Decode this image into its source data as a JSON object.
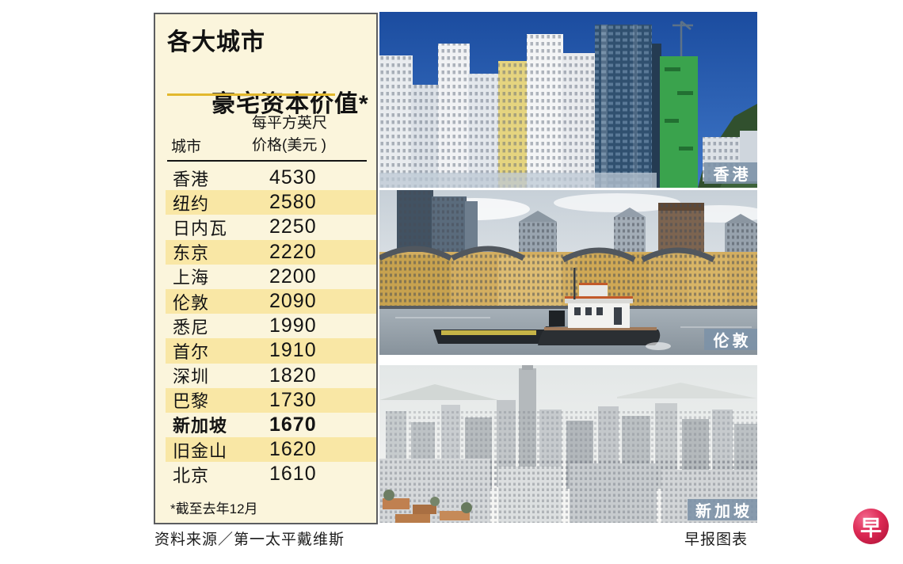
{
  "panel": {
    "title_line1": "各大城市",
    "title_line2": "豪宅资本价值*",
    "col_city": "城市",
    "col_price_line1": "每平方英尺",
    "col_price_line2": "价格(美元 )",
    "rows": [
      {
        "city": "香港",
        "price": "4530"
      },
      {
        "city": "纽约",
        "price": "2580"
      },
      {
        "city": "日内瓦",
        "price": "2250"
      },
      {
        "city": "东京",
        "price": "2220"
      },
      {
        "city": "上海",
        "price": "2200"
      },
      {
        "city": "伦敦",
        "price": "2090"
      },
      {
        "city": "悉尼",
        "price": "1990"
      },
      {
        "city": "首尔",
        "price": "1910"
      },
      {
        "city": "深圳",
        "price": "1820"
      },
      {
        "city": "巴黎",
        "price": "1730"
      },
      {
        "city": "新加坡",
        "price": "1670",
        "bold": true
      },
      {
        "city": "旧金山",
        "price": "1620"
      },
      {
        "city": "北京",
        "price": "1610"
      }
    ],
    "footnote": "*截至去年12月"
  },
  "photos": [
    {
      "label": "香港"
    },
    {
      "label": "伦敦"
    },
    {
      "label": "新加坡"
    }
  ],
  "footer": {
    "source": "资料来源／第一太平戴维斯",
    "credit": "早报图表",
    "logo_char": "早"
  },
  "colors": {
    "panel_bg": "#fbf5dc",
    "stripe": "#f9e7a5",
    "gold_rule": "#e2b82d",
    "label_band": "rgba(124,146,167,0.88)",
    "logo_red": "#c81840"
  },
  "chart_data": {
    "type": "table",
    "title": "各大城市豪宅资本价值*",
    "columns": [
      "城市",
      "每平方英尺价格(美元)"
    ],
    "rows": [
      [
        "香港",
        4530
      ],
      [
        "纽约",
        2580
      ],
      [
        "日内瓦",
        2250
      ],
      [
        "东京",
        2220
      ],
      [
        "上海",
        2200
      ],
      [
        "伦敦",
        2090
      ],
      [
        "悉尼",
        1990
      ],
      [
        "首尔",
        1910
      ],
      [
        "深圳",
        1820
      ],
      [
        "巴黎",
        1730
      ],
      [
        "新加坡",
        1670
      ],
      [
        "旧金山",
        1620
      ],
      [
        "北京",
        1610
      ]
    ],
    "highlighted_row": "新加坡",
    "footnote": "*截至去年12月",
    "source": "资料来源／第一太平戴维斯",
    "credit": "早报图表"
  }
}
